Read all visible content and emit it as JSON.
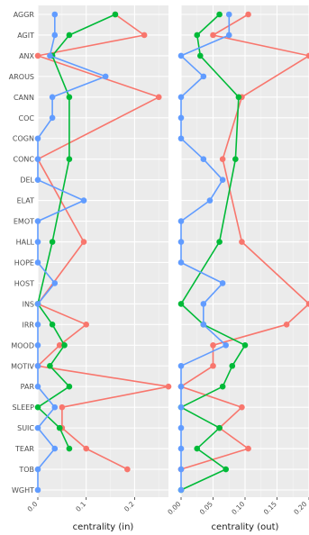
{
  "chart_data": {
    "type": "line",
    "categories": [
      "AGGR",
      "AGIT",
      "ANX",
      "AROUS",
      "CANN",
      "COC",
      "COGN",
      "CONC",
      "DEL",
      "ELAT",
      "EMOT",
      "HALL",
      "HOPE",
      "HOST",
      "INS",
      "IRR",
      "MOOD",
      "MOTIV",
      "PAR",
      "SLEEP",
      "SUIC",
      "TEAR",
      "TOB",
      "WGHT"
    ],
    "series_colors": [
      "#F8766D",
      "#00BA38",
      "#619CFF"
    ],
    "panels": [
      {
        "xlabel": "centrality (in)",
        "xlim": [
          0,
          0.27
        ],
        "xticks": [
          0,
          0.1,
          0.2
        ],
        "xtick_labels": [
          "0.0",
          "0.1",
          "0.2"
        ],
        "series": [
          {
            "values": [
              0.16,
              0.22,
              0.0,
              null,
              0.25,
              null,
              null,
              0.0,
              null,
              null,
              null,
              0.095,
              null,
              null,
              0.0,
              0.1,
              0.045,
              0.0,
              0.27,
              0.05,
              0.05,
              0.1,
              0.185,
              null
            ]
          },
          {
            "values": [
              0.16,
              0.065,
              0.03,
              null,
              0.065,
              null,
              null,
              0.065,
              null,
              null,
              null,
              0.03,
              null,
              null,
              0.0,
              0.03,
              0.055,
              0.025,
              0.065,
              0.0,
              0.045,
              0.065,
              null,
              null
            ]
          },
          {
            "values": [
              0.035,
              0.035,
              0.025,
              0.14,
              0.03,
              0.03,
              0.0,
              0.0,
              0.0,
              0.095,
              0.0,
              0.0,
              0.0,
              0.035,
              0.0,
              0.0,
              0.0,
              0.0,
              0.0,
              0.035,
              0.0,
              0.035,
              0.0,
              0.0
            ]
          }
        ]
      },
      {
        "xlabel": "centrality (out)",
        "xlim": [
          0,
          0.2
        ],
        "xticks": [
          0,
          0.05,
          0.1,
          0.15,
          0.2
        ],
        "xtick_labels": [
          "0.00",
          "0.05",
          "0.10",
          "0.15",
          "0.20"
        ],
        "series": [
          {
            "values": [
              0.105,
              0.05,
              0.2,
              null,
              0.095,
              null,
              null,
              0.065,
              null,
              null,
              null,
              0.095,
              null,
              null,
              0.2,
              0.165,
              0.05,
              0.05,
              0.0,
              0.095,
              0.06,
              0.105,
              0.0,
              null
            ]
          },
          {
            "values": [
              0.06,
              0.025,
              0.03,
              null,
              0.09,
              null,
              null,
              0.085,
              null,
              null,
              null,
              0.06,
              null,
              null,
              0.0,
              0.035,
              0.1,
              0.08,
              0.065,
              0.0,
              0.06,
              0.025,
              0.07,
              0.0
            ]
          },
          {
            "values": [
              0.075,
              0.075,
              0.0,
              0.035,
              0.0,
              0.0,
              0.0,
              0.035,
              0.065,
              0.045,
              0.0,
              0.0,
              0.0,
              0.065,
              0.035,
              0.035,
              0.07,
              0.0,
              0.0,
              0.0,
              0.0,
              0.0,
              0.0,
              0.0
            ]
          }
        ]
      }
    ]
  }
}
